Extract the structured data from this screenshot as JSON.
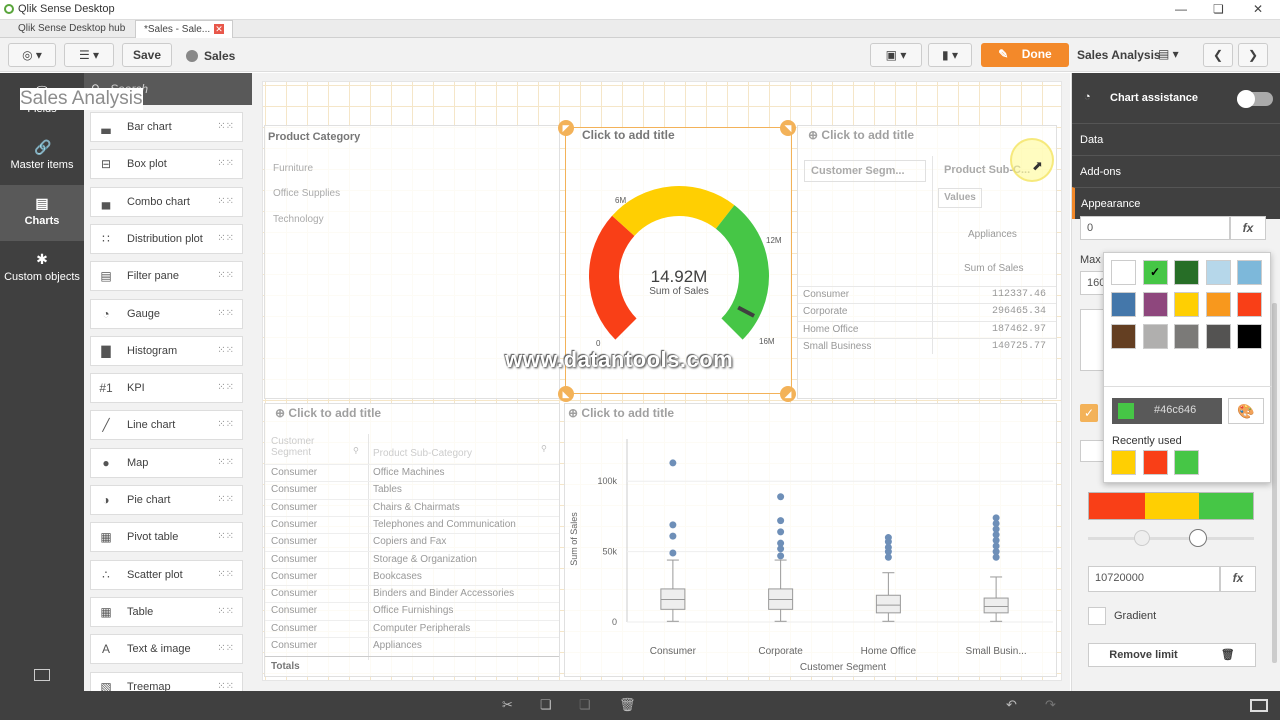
{
  "window": {
    "title": "Qlik Sense Desktop",
    "tabs": [
      {
        "label": "Qlik Sense Desktop hub"
      },
      {
        "label": "*Sales - Sale..."
      }
    ]
  },
  "toolbar": {
    "save": "Save",
    "app_name": "Sales",
    "done": "Done",
    "sheet_name": "Sales Analysis"
  },
  "leftnav": {
    "items": [
      {
        "label": "Fields",
        "icon": "database-icon"
      },
      {
        "label": "Master items",
        "icon": "link-icon"
      },
      {
        "label": "Charts",
        "icon": "bar-chart-icon"
      },
      {
        "label": "Custom objects",
        "icon": "puzzle-icon"
      }
    ]
  },
  "chart_panel": {
    "search_placeholder": "Search",
    "items": [
      {
        "label": "Bar chart",
        "icon": "bar-chart-icon"
      },
      {
        "label": "Box plot",
        "icon": "box-plot-icon"
      },
      {
        "label": "Combo chart",
        "icon": "combo-chart-icon"
      },
      {
        "label": "Distribution plot",
        "icon": "distribution-plot-icon"
      },
      {
        "label": "Filter pane",
        "icon": "filter-pane-icon"
      },
      {
        "label": "Gauge",
        "icon": "gauge-icon"
      },
      {
        "label": "Histogram",
        "icon": "histogram-icon"
      },
      {
        "label": "KPI",
        "icon": "kpi-icon"
      },
      {
        "label": "Line chart",
        "icon": "line-chart-icon"
      },
      {
        "label": "Map",
        "icon": "globe-icon"
      },
      {
        "label": "Pie chart",
        "icon": "pie-chart-icon"
      },
      {
        "label": "Pivot table",
        "icon": "pivot-table-icon"
      },
      {
        "label": "Scatter plot",
        "icon": "scatter-plot-icon"
      },
      {
        "label": "Table",
        "icon": "table-icon"
      },
      {
        "label": "Text & image",
        "icon": "text-image-icon"
      },
      {
        "label": "Treemap",
        "icon": "treemap-icon"
      }
    ]
  },
  "sheet": {
    "title": "Sales Analysis"
  },
  "filter_pane": {
    "title": "Product Category",
    "items": [
      "Furniture",
      "Office Supplies",
      "Technology"
    ]
  },
  "gauge": {
    "add_title": "Click to add title",
    "value": "14.92M",
    "measure": "Sum of Sales",
    "labels": [
      "0",
      "6M",
      "12M",
      "16M"
    ]
  },
  "pivot": {
    "add_title": "Click to add title",
    "dim1": "Customer Segm...",
    "dim2": "Product Sub-C...",
    "values_label": "Values",
    "col_header": "Appliances",
    "measure": "Sum of Sales",
    "rows": [
      {
        "segment": "Consumer",
        "value": "112337.46"
      },
      {
        "segment": "Corporate",
        "value": "296465.34"
      },
      {
        "segment": "Home Office",
        "value": "187462.97"
      },
      {
        "segment": "Small Business",
        "value": "140725.77"
      }
    ]
  },
  "table": {
    "add_title": "Click to add title",
    "col1": "Customer Segment",
    "col2": "Product Sub-Category",
    "rows": [
      [
        "Consumer",
        "Office Machines"
      ],
      [
        "Consumer",
        "Tables"
      ],
      [
        "Consumer",
        "Chairs & Chairmats"
      ],
      [
        "Consumer",
        "Telephones and Communication"
      ],
      [
        "Consumer",
        "Copiers and Fax"
      ],
      [
        "Consumer",
        "Storage & Organization"
      ],
      [
        "Consumer",
        "Bookcases"
      ],
      [
        "Consumer",
        "Binders and Binder Accessories"
      ],
      [
        "Consumer",
        "Office Furnishings"
      ],
      [
        "Consumer",
        "Computer Peripherals"
      ],
      [
        "Consumer",
        "Appliances"
      ]
    ],
    "totals": "Totals"
  },
  "chart_data": {
    "type": "boxplot",
    "title": "Click to add title",
    "xlabel": "Customer Segment",
    "ylabel": "Sum of Sales",
    "categories": [
      "Consumer",
      "Corporate",
      "Home Office",
      "Small Busin..."
    ],
    "ytick_labels": [
      "0",
      "50k",
      "100k"
    ],
    "ylim": [
      0,
      130000
    ],
    "boxes": [
      {
        "min": 500,
        "q1": 9000,
        "median": 16000,
        "q3": 23500,
        "max": 44000,
        "outliers": [
          49000,
          61000,
          69000,
          113000
        ]
      },
      {
        "min": 500,
        "q1": 9000,
        "median": 16000,
        "q3": 23500,
        "max": 44000,
        "outliers": [
          47000,
          52000,
          56000,
          64000,
          72000,
          89000
        ]
      },
      {
        "min": 500,
        "q1": 6500,
        "median": 12000,
        "q3": 19000,
        "max": 35000,
        "outliers": [
          46000,
          50000,
          53000,
          57000,
          60000
        ]
      },
      {
        "min": 500,
        "q1": 6500,
        "median": 11000,
        "q3": 17000,
        "max": 32000,
        "outliers": [
          46000,
          50000,
          54000,
          58000,
          62000,
          66000,
          70000,
          74000
        ]
      }
    ],
    "color": "#6e8fb8"
  },
  "right_panel": {
    "header": "Chart assistance",
    "sections": [
      "Data",
      "Add-ons",
      "Appearance"
    ],
    "min_value": "0",
    "max_label": "Max",
    "max_value": "160",
    "limit_value": "10720000",
    "gradient": "Gradient",
    "remove_limit": "Remove limit",
    "fx": "fx"
  },
  "color_picker": {
    "hex": "#46c646",
    "recent_label": "Recently used",
    "swatches": [
      "#ffffff",
      "#46c646",
      "#276e27",
      "#b6d7ea",
      "#7db8da",
      "#4477aa",
      "#8e477d",
      "#ffcf02",
      "#f8981d",
      "#f93f17",
      "#643f22",
      "#b0afae",
      "#7b7a78",
      "#545352",
      "#000000"
    ],
    "recent": [
      "#ffcf02",
      "#f93f17",
      "#46c646"
    ]
  },
  "gauge_colors": {
    "red": "#f93f17",
    "yellow": "#ffcf02",
    "green": "#46c646"
  },
  "watermark": "www.datantools.com"
}
